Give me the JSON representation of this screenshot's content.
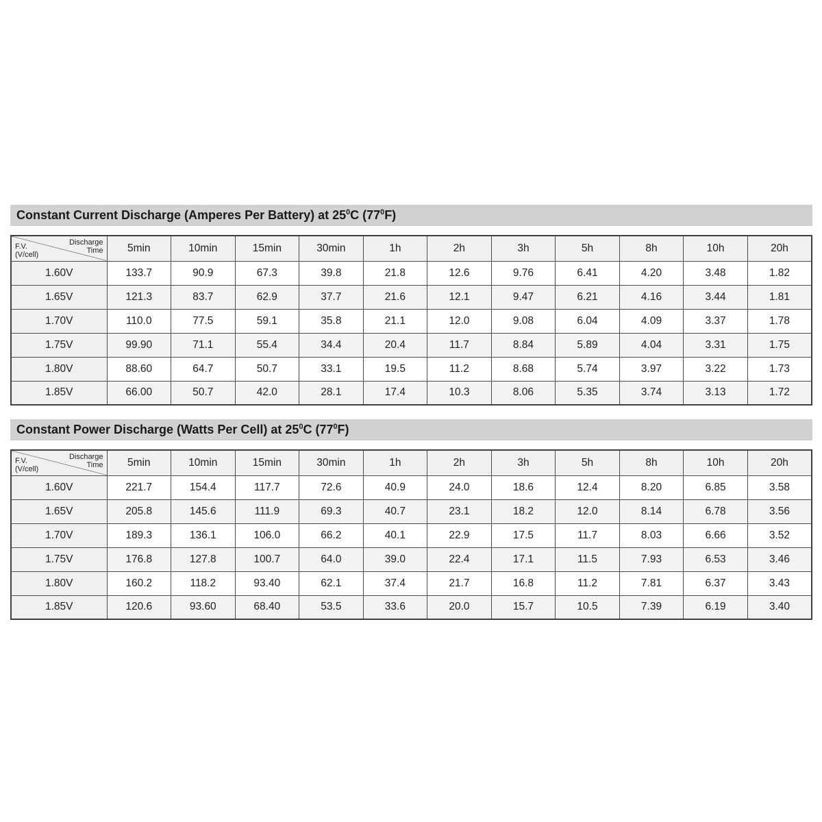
{
  "tables": [
    {
      "title": {
        "part1": "Constant Current Discharge (Amperes Per Battery) at 25",
        "deg1": "0",
        "part2": "C (77",
        "deg2": "0",
        "part3": "F)"
      },
      "corner": {
        "top1": "Discharge",
        "top2": "Time",
        "bottom1": "F.V.",
        "bottom2": "(V/cell)"
      },
      "columns": [
        "5min",
        "10min",
        "15min",
        "30min",
        "1h",
        "2h",
        "3h",
        "5h",
        "8h",
        "10h",
        "20h"
      ],
      "rows": [
        {
          "label": "1.60V",
          "values": [
            "133.7",
            "90.9",
            "67.3",
            "39.8",
            "21.8",
            "12.6",
            "9.76",
            "6.41",
            "4.20",
            "3.48",
            "1.82"
          ]
        },
        {
          "label": "1.65V",
          "values": [
            "121.3",
            "83.7",
            "62.9",
            "37.7",
            "21.6",
            "12.1",
            "9.47",
            "6.21",
            "4.16",
            "3.44",
            "1.81"
          ]
        },
        {
          "label": "1.70V",
          "values": [
            "110.0",
            "77.5",
            "59.1",
            "35.8",
            "21.1",
            "12.0",
            "9.08",
            "6.04",
            "4.09",
            "3.37",
            "1.78"
          ]
        },
        {
          "label": "1.75V",
          "values": [
            "99.90",
            "71.1",
            "55.4",
            "34.4",
            "20.4",
            "11.7",
            "8.84",
            "5.89",
            "4.04",
            "3.31",
            "1.75"
          ]
        },
        {
          "label": "1.80V",
          "values": [
            "88.60",
            "64.7",
            "50.7",
            "33.1",
            "19.5",
            "11.2",
            "8.68",
            "5.74",
            "3.97",
            "3.22",
            "1.73"
          ]
        },
        {
          "label": "1.85V",
          "values": [
            "66.00",
            "50.7",
            "42.0",
            "28.1",
            "17.4",
            "10.3",
            "8.06",
            "5.35",
            "3.74",
            "3.13",
            "1.72"
          ]
        }
      ]
    },
    {
      "title": {
        "part1": "Constant Power Discharge (Watts Per Cell) at 25",
        "deg1": "0",
        "part2": "C (77",
        "deg2": "0",
        "part3": "F)"
      },
      "corner": {
        "top1": "Discharge",
        "top2": "Time",
        "bottom1": "F.V.",
        "bottom2": "(V/cell)"
      },
      "columns": [
        "5min",
        "10min",
        "15min",
        "30min",
        "1h",
        "2h",
        "3h",
        "5h",
        "8h",
        "10h",
        "20h"
      ],
      "rows": [
        {
          "label": "1.60V",
          "values": [
            "221.7",
            "154.4",
            "117.7",
            "72.6",
            "40.9",
            "24.0",
            "18.6",
            "12.4",
            "8.20",
            "6.85",
            "3.58"
          ]
        },
        {
          "label": "1.65V",
          "values": [
            "205.8",
            "145.6",
            "111.9",
            "69.3",
            "40.7",
            "23.1",
            "18.2",
            "12.0",
            "8.14",
            "6.78",
            "3.56"
          ]
        },
        {
          "label": "1.70V",
          "values": [
            "189.3",
            "136.1",
            "106.0",
            "66.2",
            "40.1",
            "22.9",
            "17.5",
            "11.7",
            "8.03",
            "6.66",
            "3.52"
          ]
        },
        {
          "label": "1.75V",
          "values": [
            "176.8",
            "127.8",
            "100.7",
            "64.0",
            "39.0",
            "22.4",
            "17.1",
            "11.5",
            "7.93",
            "6.53",
            "3.46"
          ]
        },
        {
          "label": "1.80V",
          "values": [
            "160.2",
            "118.2",
            "93.40",
            "62.1",
            "37.4",
            "21.7",
            "16.8",
            "11.2",
            "7.81",
            "6.37",
            "3.43"
          ]
        },
        {
          "label": "1.85V",
          "values": [
            "120.6",
            "93.60",
            "68.40",
            "53.5",
            "33.6",
            "20.0",
            "15.7",
            "10.5",
            "7.39",
            "6.19",
            "3.40"
          ]
        }
      ]
    }
  ],
  "colors": {
    "title_bar_bg": "#d1d1d1",
    "header_bg": "#f0f0f0",
    "stripe_bg": "#f2f2f2",
    "border": "#4b4b4b",
    "text": "#1f1f1f"
  }
}
